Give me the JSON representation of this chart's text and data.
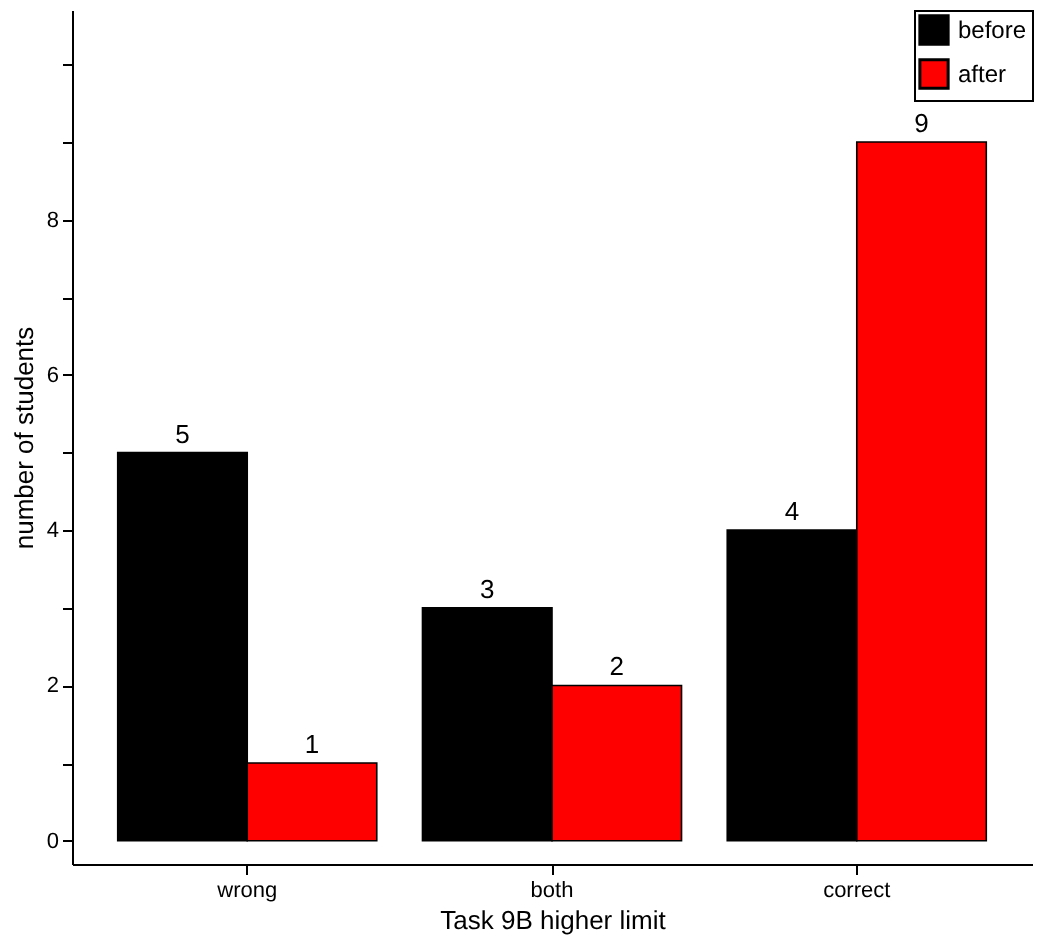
{
  "chart_data": {
    "type": "bar",
    "xlabel": "Task 9B higher limit",
    "ylabel": "number of students",
    "categories": [
      "wrong",
      "both",
      "correct"
    ],
    "series": [
      {
        "name": "before",
        "color": "#000000",
        "values": [
          5,
          3,
          4
        ]
      },
      {
        "name": "after",
        "color": "#ff0000",
        "values": [
          1,
          2,
          9
        ]
      }
    ],
    "ylim": [
      -0.3,
      10.7
    ],
    "yticks": [
      0,
      {
        "value": 1,
        "label": null
      },
      2,
      {
        "value": 3,
        "label": null
      },
      4,
      {
        "value": 5,
        "label": null
      },
      6,
      {
        "value": 7,
        "label": null
      },
      8,
      {
        "value": 9,
        "label": null
      },
      {
        "value": 10,
        "label": null
      }
    ],
    "data_labels": true,
    "legend": "top right",
    "grid": false
  }
}
